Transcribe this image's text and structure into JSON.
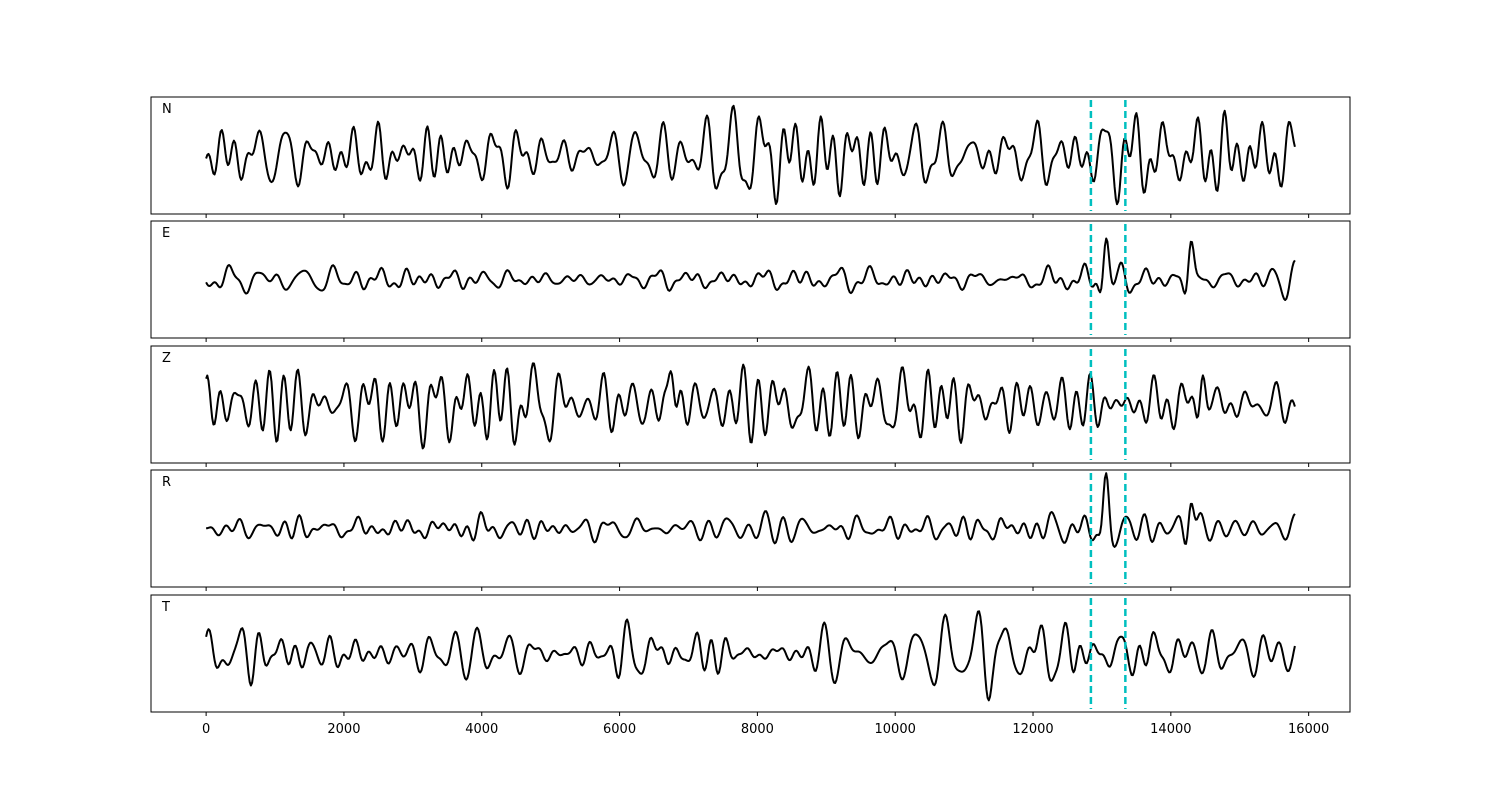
{
  "chart_data": {
    "type": "line",
    "title": "",
    "xlabel": "",
    "ylabel": "",
    "xlim": [
      -800,
      16600
    ],
    "xticks": [
      0,
      2000,
      4000,
      6000,
      8000,
      10000,
      12000,
      14000,
      16000
    ],
    "xtick_labels": [
      "0",
      "2000",
      "4000",
      "6000",
      "8000",
      "10000",
      "12000",
      "14000",
      "16000"
    ],
    "n_samples": 15800,
    "grid": false,
    "markers": {
      "color": "#00bfbf",
      "style": "dashed",
      "x": [
        12840,
        13340
      ]
    },
    "series_color": "#000000",
    "panels": [
      {
        "name": "N",
        "amplitude": 0.85,
        "seed": 11,
        "events": []
      },
      {
        "name": "E",
        "amplitude": 0.35,
        "seed": 23,
        "events": [
          {
            "x": 13050,
            "amp": 0.85
          },
          {
            "x": 14280,
            "amp": 0.75
          }
        ]
      },
      {
        "name": "Z",
        "amplitude": 0.75,
        "seed": 37,
        "events": [
          {
            "x": 6750,
            "amp": 0.9
          },
          {
            "x": 14450,
            "amp": 0.8
          }
        ]
      },
      {
        "name": "R",
        "amplitude": 0.35,
        "seed": 41,
        "events": [
          {
            "x": 13050,
            "amp": 0.85
          },
          {
            "x": 14280,
            "amp": 0.75
          }
        ]
      },
      {
        "name": "T",
        "amplitude": 0.8,
        "seed": 53,
        "events": []
      }
    ]
  }
}
